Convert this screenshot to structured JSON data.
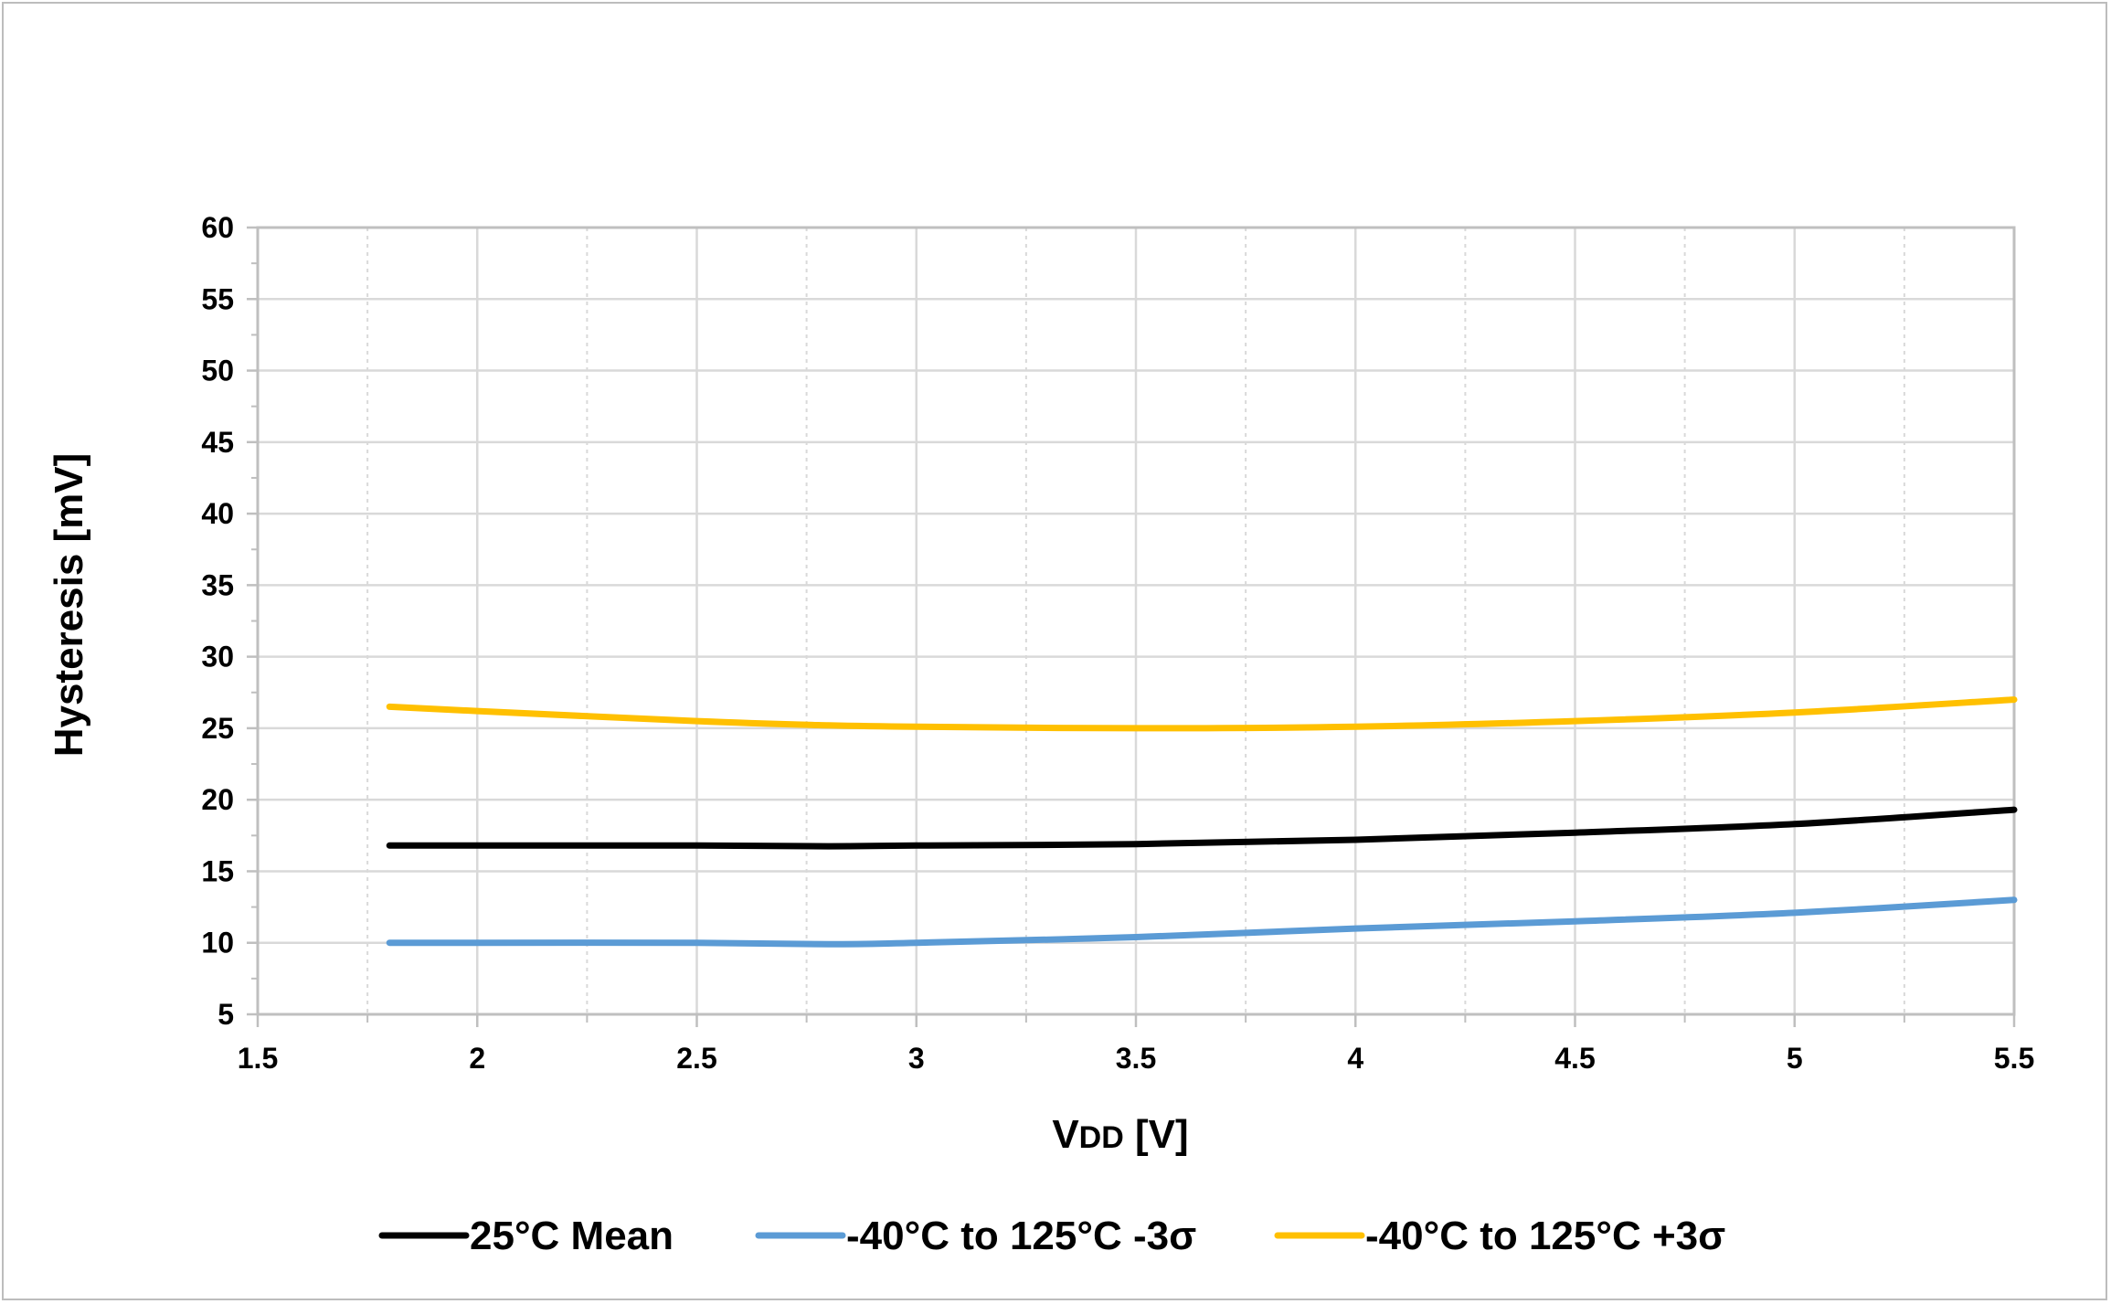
{
  "chart_data": {
    "type": "line",
    "title": "",
    "xlabel": "VDD [V]",
    "xlabel_main": "V",
    "xlabel_sub": "DD",
    "xlabel_unit": " [V]",
    "ylabel": "Hysteresis [mV]",
    "xlim": [
      1.5,
      5.5
    ],
    "ylim": [
      5,
      60
    ],
    "xticks": [
      "1.5",
      "2",
      "2.5",
      "3",
      "3.5",
      "4",
      "4.5",
      "5",
      "5.5"
    ],
    "yticks": [
      "5",
      "10",
      "15",
      "20",
      "25",
      "30",
      "35",
      "40",
      "45",
      "50",
      "55",
      "60"
    ],
    "grid": true,
    "legend_position": "bottom",
    "series": [
      {
        "name": "25°C Mean",
        "color": "#000000",
        "x": [
          1.8,
          2.0,
          2.5,
          2.8,
          3.0,
          3.5,
          4.0,
          4.5,
          5.0,
          5.5
        ],
        "y": [
          16.8,
          16.8,
          16.8,
          16.75,
          16.8,
          16.9,
          17.2,
          17.7,
          18.3,
          19.3
        ]
      },
      {
        "name": "-40°C to 125°C -3σ",
        "color": "#5B9BD5",
        "x": [
          1.8,
          2.0,
          2.5,
          2.8,
          3.0,
          3.5,
          4.0,
          4.5,
          5.0,
          5.5
        ],
        "y": [
          10.0,
          10.0,
          10.0,
          9.9,
          10.0,
          10.4,
          11.0,
          11.5,
          12.1,
          13.0
        ]
      },
      {
        "name": "-40°C to 125°C +3σ",
        "color": "#FFC000",
        "x": [
          1.8,
          2.0,
          2.5,
          2.8,
          3.0,
          3.5,
          4.0,
          4.5,
          5.0,
          5.5
        ],
        "y": [
          26.5,
          26.2,
          25.5,
          25.2,
          25.1,
          25.0,
          25.1,
          25.5,
          26.1,
          27.0
        ]
      }
    ]
  }
}
